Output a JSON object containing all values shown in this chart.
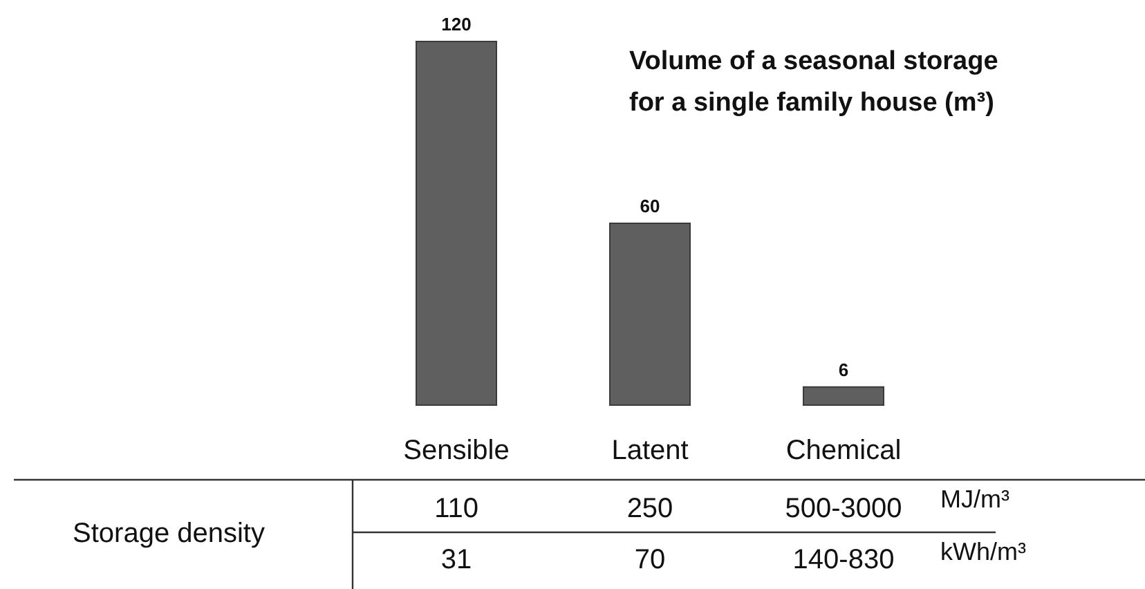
{
  "chart_data": {
    "type": "bar",
    "title": "Volume of a seasonal storage\nfor a single family house (m³)",
    "categories": [
      "Sensible",
      "Latent",
      "Chemical"
    ],
    "values": [
      120,
      60,
      6
    ],
    "color": "#5f5f5f",
    "ylim": [
      0,
      120
    ],
    "data_labels": true,
    "annotations": [
      "Storage density",
      "110",
      "250",
      "500-3000",
      "MJ/m³",
      "31",
      "70",
      "140-830",
      "kWh/m³"
    ]
  }
}
